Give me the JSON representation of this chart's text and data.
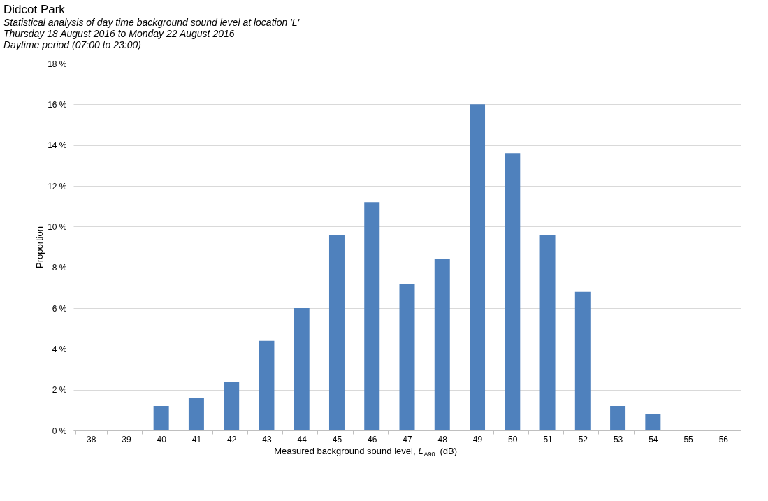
{
  "chart_data": {
    "type": "bar",
    "title": "Didcot Park",
    "subtitle": "Statistical analysis of day time background sound level at location 'L'\nThursday 18 August 2016 to Monday 22 August 2016\nDaytime period (07:00 to 23:00)",
    "xlabel": "Measured background sound level, L$_{A90}$ (dB)",
    "ylabel": "Proportion",
    "categories": [
      "38",
      "39",
      "40",
      "41",
      "42",
      "43",
      "44",
      "45",
      "46",
      "47",
      "48",
      "49",
      "50",
      "51",
      "52",
      "53",
      "54",
      "55",
      "56"
    ],
    "values": [
      0,
      0,
      1.2,
      1.6,
      2.4,
      4.4,
      6.0,
      9.6,
      11.2,
      7.2,
      8.4,
      16.0,
      13.6,
      9.6,
      6.8,
      1.2,
      0.8,
      0,
      0
    ],
    "color": "#4f81bd",
    "ylim": [
      0,
      18
    ],
    "yticks": [
      {
        "value": 0,
        "label": "0 %"
      },
      {
        "value": 2,
        "label": "2 %"
      },
      {
        "value": 4,
        "label": "4 %"
      },
      {
        "value": 6,
        "label": "6 %"
      },
      {
        "value": 8,
        "label": "8 %"
      },
      {
        "value": 10,
        "label": "10 %"
      },
      {
        "value": 12,
        "label": "12 %"
      },
      {
        "value": 14,
        "label": "14 %"
      },
      {
        "value": 16,
        "label": "16 %"
      },
      {
        "value": 18,
        "label": "18 %"
      }
    ],
    "grid": "y"
  }
}
